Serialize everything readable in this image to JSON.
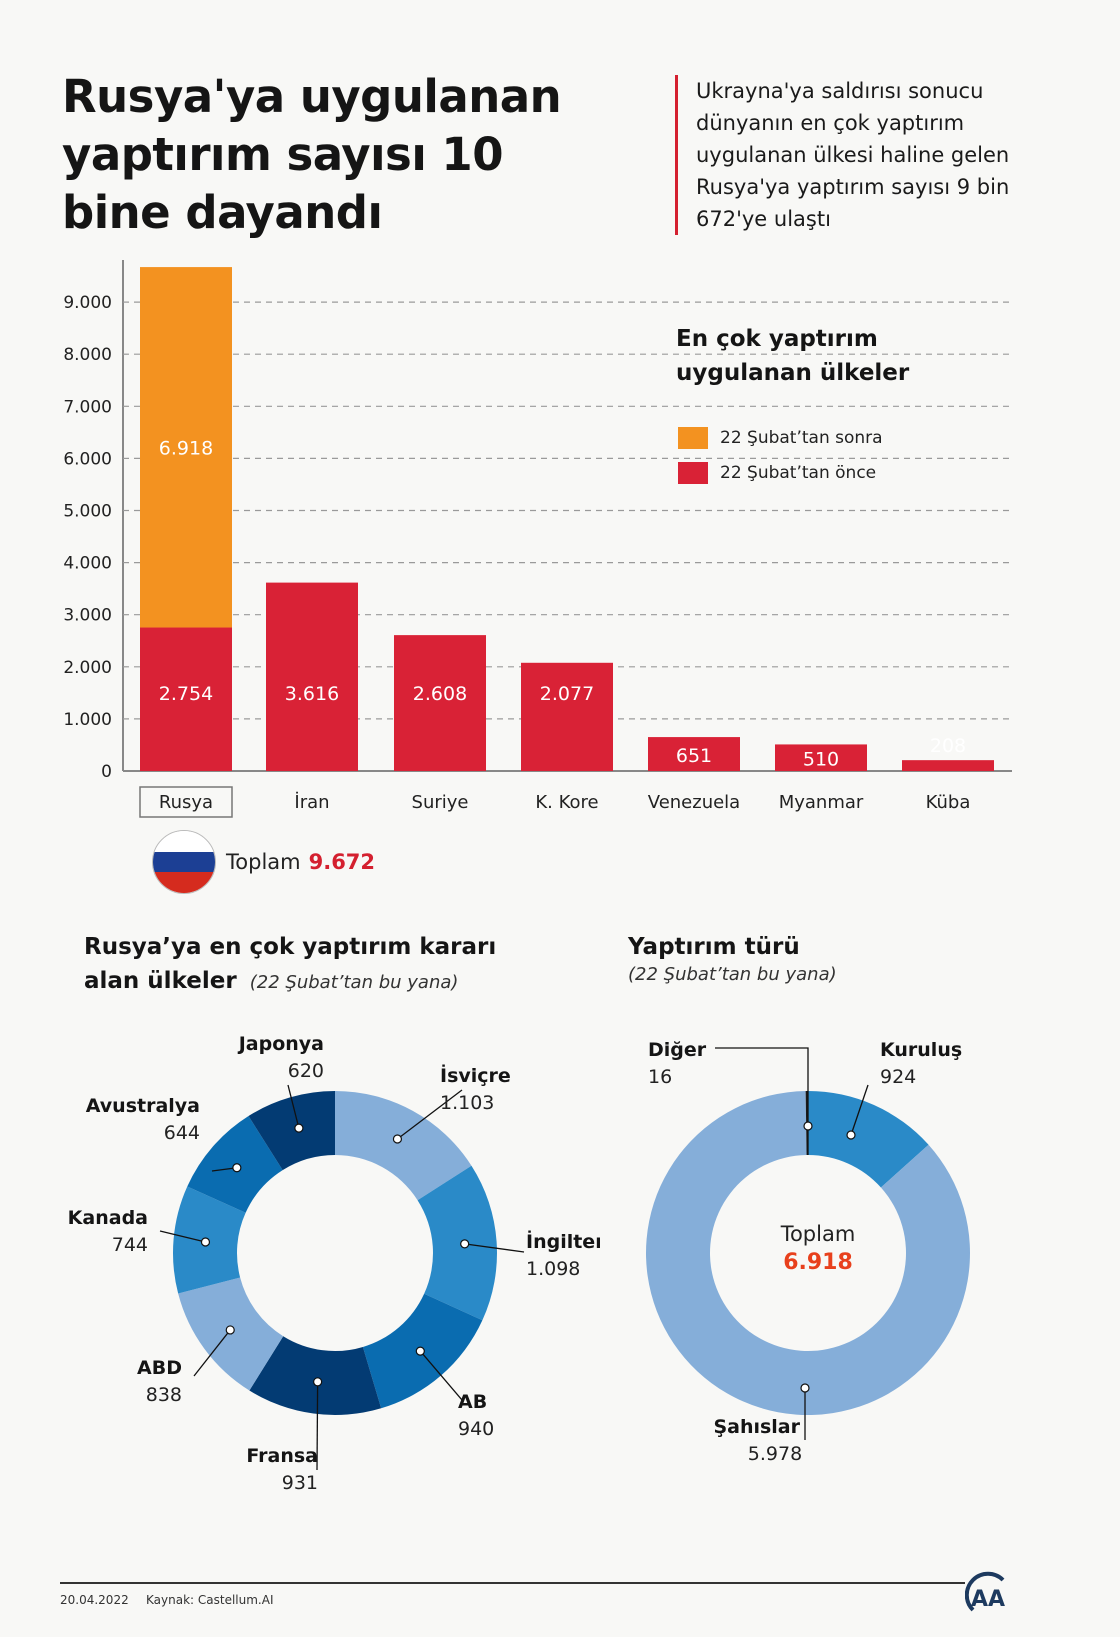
{
  "header": {
    "title": "Rusya'ya uygulanan yaptırım sayısı 10 bine dayandı",
    "intro": "Ukrayna'ya saldırısı sonucu dünyanın en çok yaptırım uygulanan ülkesi haline gelen Rusya'ya yaptırım sayısı 9 bin 672'ye ulaştı",
    "accent_color": "#d4202f"
  },
  "bar_legend": {
    "title": "En çok yaptırım uygulanan ülkeler",
    "items": [
      {
        "label": "22 Şubat’tan sonra",
        "color": "#f39220"
      },
      {
        "label": "22 Şubat’tan önce",
        "color": "#d92236"
      }
    ]
  },
  "russia_total": {
    "label": "Toplam",
    "value": "9.672"
  },
  "donut1_header": {
    "title": "Rusya’ya en çok yaptırım kararı alan ülkeler",
    "subtitle": "(22 Şubat’tan bu yana)"
  },
  "donut2_header": {
    "title": "Yaptırım türü",
    "subtitle": "(22 Şubat’tan bu yana)",
    "center_label": "Toplam",
    "center_value": "6.918"
  },
  "footer": {
    "date": "20.04.2022",
    "source": "Kaynak: Castellum.AI",
    "logo": "AA"
  },
  "chart_data": [
    {
      "type": "bar",
      "title": "En çok yaptırım uygulanan ülkeler",
      "stacked": true,
      "categories": [
        "Rusya",
        "İran",
        "Suriye",
        "K. Kore",
        "Venezuela",
        "Myanmar",
        "Küba"
      ],
      "series": [
        {
          "name": "22 Şubat’tan önce",
          "values": [
            2754,
            3616,
            2608,
            2077,
            651,
            510,
            208
          ],
          "labels": [
            "2.754",
            "3.616",
            "2.608",
            "2.077",
            "651",
            "510",
            "208"
          ],
          "color": "#d92236"
        },
        {
          "name": "22 Şubat’tan sonra",
          "values": [
            6918,
            0,
            0,
            0,
            0,
            0,
            0
          ],
          "labels": [
            "6.918",
            "",
            "",
            "",
            "",
            "",
            ""
          ],
          "color": "#f39220"
        }
      ],
      "ylim": [
        0,
        9700
      ],
      "yticks": [
        0,
        1000,
        2000,
        3000,
        4000,
        5000,
        6000,
        7000,
        8000,
        9000
      ],
      "ytick_labels": [
        "0",
        "1.000",
        "2.000",
        "3.000",
        "4.000",
        "5.000",
        "6.000",
        "7.000",
        "8.000",
        "9.000"
      ],
      "grid": true,
      "highlighted_category": "Rusya",
      "legend_position": "top-right"
    },
    {
      "type": "pie",
      "donut": true,
      "title": "Rusya’ya en çok yaptırım kararı alan ülkeler",
      "subtitle": "(22 Şubat’tan bu yana)",
      "slices": [
        {
          "label": "İsviçre",
          "value": 1103,
          "display": "1.103",
          "color": "#85aed9"
        },
        {
          "label": "İngiltere",
          "value": 1098,
          "display": "1.098",
          "color": "#2a8ac8"
        },
        {
          "label": "AB",
          "value": 940,
          "display": "940",
          "color": "#0a6cb0"
        },
        {
          "label": "Fransa",
          "value": 931,
          "display": "931",
          "color": "#033b73"
        },
        {
          "label": "ABD",
          "value": 838,
          "display": "838",
          "color": "#85aed9"
        },
        {
          "label": "Kanada",
          "value": 744,
          "display": "744",
          "color": "#2a8ac8"
        },
        {
          "label": "Avustralya",
          "value": 644,
          "display": "644",
          "color": "#0a6cb0"
        },
        {
          "label": "Japonya",
          "value": 620,
          "display": "620",
          "color": "#033b73"
        }
      ]
    },
    {
      "type": "pie",
      "donut": true,
      "title": "Yaptırım türü",
      "subtitle": "(22 Şubat’tan bu yana)",
      "total": 6918,
      "slices": [
        {
          "label": "Kuruluş",
          "value": 924,
          "display": "924",
          "color": "#2a8ac8"
        },
        {
          "label": "Şahıslar",
          "value": 5978,
          "display": "5.978",
          "color": "#85aed9"
        },
        {
          "label": "Diğer",
          "value": 16,
          "display": "16",
          "color": "#1a1a1a"
        }
      ]
    }
  ]
}
